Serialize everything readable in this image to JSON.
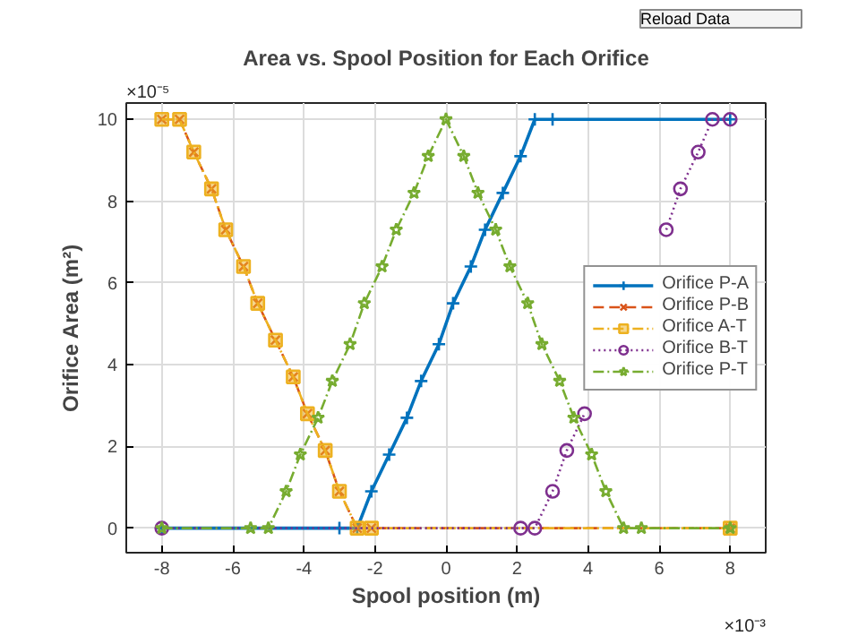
{
  "chart_data": {
    "type": "line",
    "title": "Area vs. Spool Position for Each Orifice",
    "xlabel": "Spool position (m)",
    "ylabel": "Orifice Area (m²)",
    "annotations": [
      "×10⁻⁵",
      "×10⁻³",
      "Reload Data"
    ],
    "xlim": [
      -9,
      9
    ],
    "ylim": [
      -0.6,
      10.4
    ],
    "xticks": [
      -8,
      -6,
      -4,
      -2,
      0,
      2,
      4,
      6,
      8
    ],
    "yticks": [
      0,
      2,
      4,
      6,
      8,
      10
    ],
    "grid": true,
    "legend": "right",
    "series": [
      {
        "name": "Orifice P-A",
        "color": "#0072bd",
        "line_style": "solid",
        "marker": "cross",
        "x": [
          -8,
          -3,
          -2.5,
          -2.1,
          -1.6,
          -1.1,
          -0.7,
          -0.2,
          0.2,
          0.7,
          1.1,
          1.6,
          2.1,
          2.5,
          3,
          8
        ],
        "values": [
          0,
          0,
          0,
          0.9,
          1.8,
          2.7,
          3.6,
          4.5,
          5.5,
          6.4,
          7.3,
          8.2,
          9.1,
          10,
          10,
          10
        ]
      },
      {
        "name": "Orifice P-B",
        "color": "#d95319",
        "line_style": "dashed",
        "marker": "x",
        "x": [
          -8,
          -7.5,
          -7.1,
          -6.6,
          -6.2,
          -5.7,
          -5.3,
          -4.8,
          -4.3,
          -3.9,
          -3.4,
          -3,
          -2.5,
          -2.1,
          8
        ],
        "values": [
          10,
          10,
          9.2,
          8.3,
          7.3,
          6.4,
          5.5,
          4.6,
          3.7,
          2.8,
          1.9,
          0.9,
          0,
          0,
          0
        ]
      },
      {
        "name": "Orifice A-T",
        "color": "#edb120",
        "line_style": "dashdot",
        "marker": "square",
        "x": [
          -8,
          -7.5,
          -7.1,
          -6.6,
          -6.2,
          -5.7,
          -5.3,
          -4.8,
          -4.3,
          -3.9,
          -3.4,
          -3,
          -2.5,
          -2.1,
          8
        ],
        "values": [
          10,
          10,
          9.2,
          8.3,
          7.3,
          6.4,
          5.5,
          4.6,
          3.7,
          2.8,
          1.9,
          0.9,
          0,
          0,
          0
        ]
      },
      {
        "name": "Orifice B-T",
        "color": "#7e2f8e",
        "line_style": "dotted",
        "marker": "circle",
        "x": [
          -8,
          2.1,
          2.5,
          3,
          3.4,
          3.9,
          4.3,
          4.8,
          5.3,
          5.7,
          6.2,
          6.6,
          7.1,
          7.5,
          8
        ],
        "values": [
          0,
          0,
          0,
          0.9,
          1.9,
          2.8,
          null,
          null,
          null,
          null,
          7.3,
          8.3,
          9.2,
          10,
          10
        ]
      },
      {
        "name": "Orifice P-T",
        "color": "#77ac30",
        "line_style": "dashdot",
        "marker": "star",
        "x": [
          -8,
          -5.5,
          -5,
          -4.5,
          -4.1,
          -3.6,
          -3.2,
          -2.7,
          -2.3,
          -1.8,
          -1.4,
          -0.9,
          -0.5,
          0,
          0.5,
          0.9,
          1.4,
          1.8,
          2.3,
          2.7,
          3.2,
          3.6,
          4.1,
          4.5,
          5,
          5.5,
          8
        ],
        "values": [
          0,
          0,
          0,
          0.9,
          1.8,
          2.7,
          3.6,
          4.5,
          5.5,
          6.4,
          7.3,
          8.2,
          9.1,
          10,
          9.1,
          8.2,
          7.3,
          6.4,
          5.5,
          4.5,
          3.6,
          2.7,
          1.8,
          0.9,
          0,
          0,
          0
        ]
      }
    ]
  }
}
